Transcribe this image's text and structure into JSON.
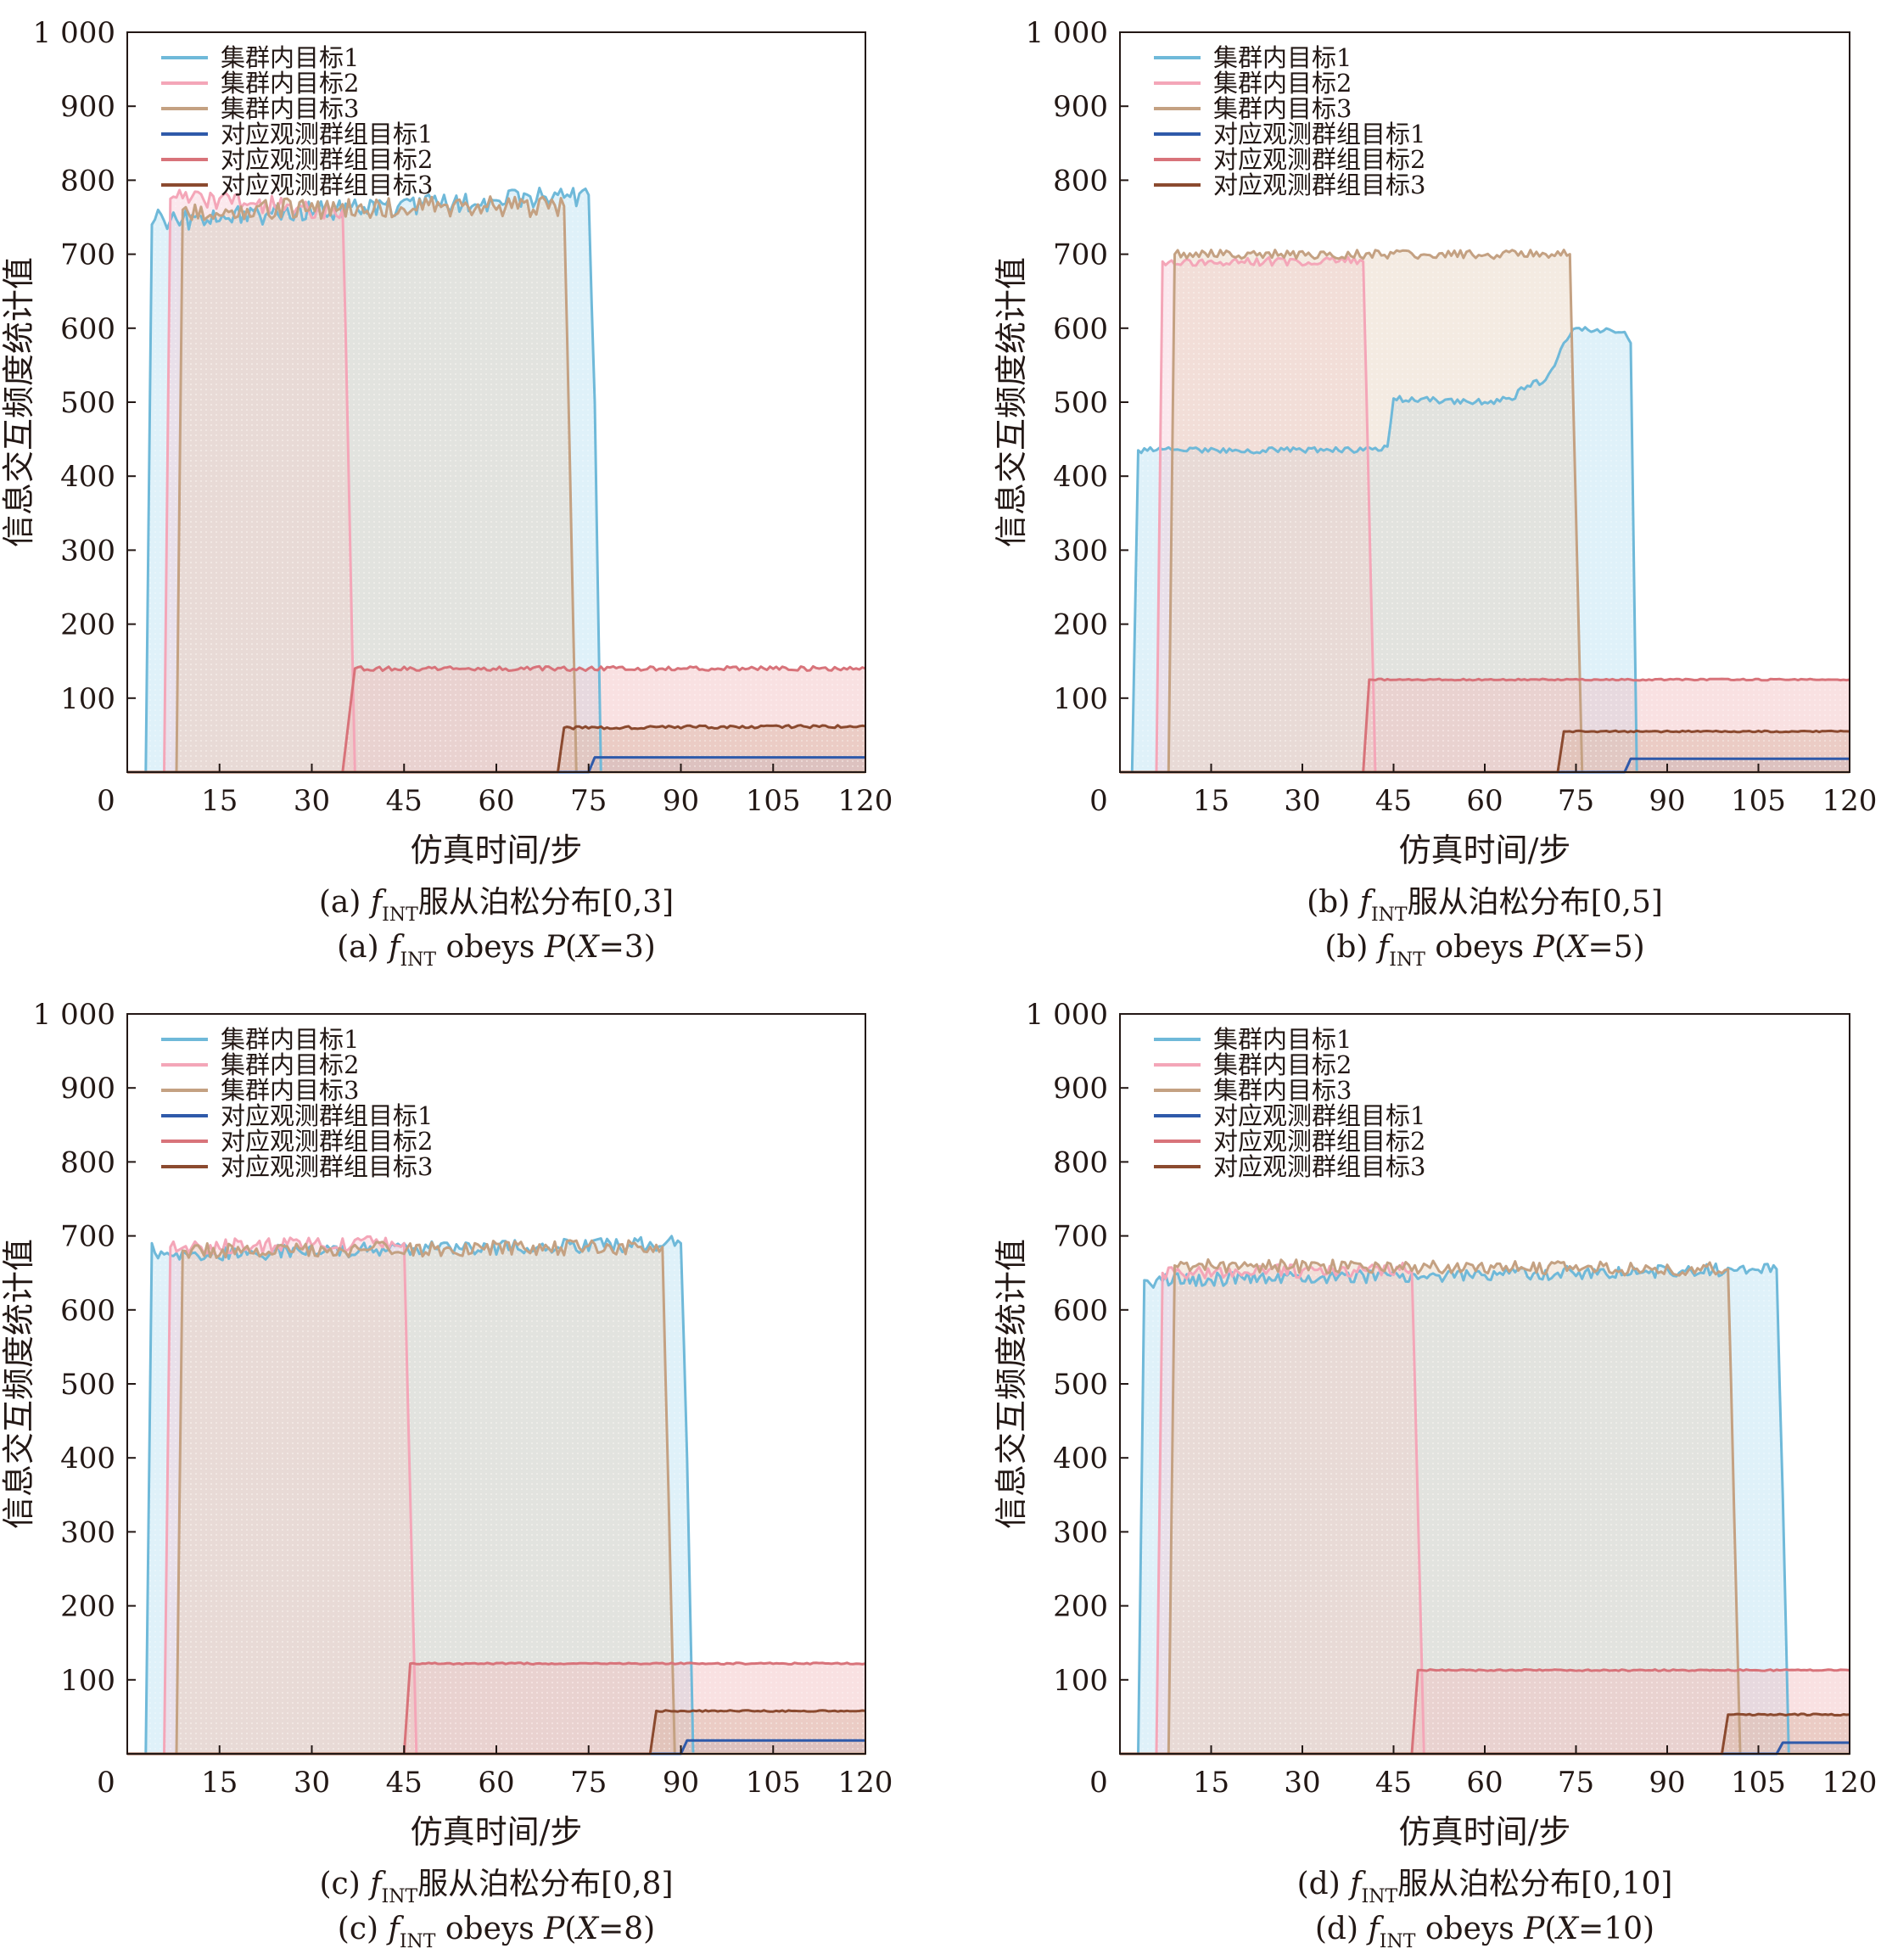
{
  "figure": {
    "panels": [
      {
        "caption_cn": [
          "(a) ",
          "f",
          "INT",
          "服从泊松分布[0,3]"
        ],
        "caption_en": [
          "(a) ",
          "f",
          "INT",
          " obeys ",
          "P",
          "(",
          "X",
          "=3)"
        ]
      },
      {
        "caption_cn": [
          "(b) ",
          "f",
          "INT",
          "服从泊松分布[0,5]"
        ],
        "caption_en": [
          "(b) ",
          "f",
          "INT",
          " obeys ",
          "P",
          "(",
          "X",
          "=5)"
        ]
      },
      {
        "caption_cn": [
          "(c) ",
          "f",
          "INT",
          "服从泊松分布[0,8]"
        ],
        "caption_en": [
          "(c) ",
          "f",
          "INT",
          " obeys ",
          "P",
          "(",
          "X",
          "=8)"
        ]
      },
      {
        "caption_cn": [
          "(d) ",
          "f",
          "INT",
          "服从泊松分布[0,10]"
        ],
        "caption_en": [
          "(d) ",
          "f",
          "INT",
          " obeys ",
          "P",
          "(",
          "X",
          "=10)"
        ]
      }
    ]
  },
  "chart_data": [
    {
      "type": "area",
      "xlabel": "仿真时间/步",
      "ylabel": "信息交互频度统计值",
      "xlim": [
        0,
        120
      ],
      "ylim": [
        0,
        1000
      ],
      "xticks": [
        0,
        15,
        30,
        45,
        60,
        75,
        90,
        105,
        120
      ],
      "yticks": [
        100,
        200,
        300,
        400,
        500,
        600,
        700,
        800,
        900,
        1000
      ],
      "ytick_labels": [
        "100",
        "200",
        "300",
        "400",
        "500",
        "600",
        "700",
        "800",
        "900",
        "1 000"
      ],
      "legend": "top-left",
      "series": [
        {
          "name": "集群内目标1",
          "color": "#6fb9d9",
          "fill": "#b9e0f1",
          "x": [
            0,
            3,
            4,
            5,
            6,
            75,
            76,
            77,
            120
          ],
          "values": [
            0,
            0,
            740,
            760,
            745,
            780,
            500,
            0,
            0
          ],
          "noise": 14
        },
        {
          "name": "集群内目标2",
          "color": "#f4a6b8",
          "fill": "#f6cdd6",
          "x": [
            0,
            6,
            7,
            35,
            36,
            37,
            120
          ],
          "values": [
            0,
            0,
            775,
            760,
            400,
            0,
            0
          ],
          "noise": 14
        },
        {
          "name": "集群内目标3",
          "color": "#c4a182",
          "fill": "#e6d2bf",
          "x": [
            0,
            8,
            9,
            71,
            72,
            73,
            120
          ],
          "values": [
            0,
            0,
            760,
            765,
            400,
            0,
            0
          ],
          "noise": 14
        },
        {
          "name": "对应观测群组目标1",
          "color": "#2f5aaa",
          "fill": "#9fb4dc",
          "x": [
            0,
            75,
            76,
            120
          ],
          "values": [
            0,
            0,
            20,
            20
          ],
          "noise": 0
        },
        {
          "name": "对应观测群组目标2",
          "color": "#d8737a",
          "fill": "#f2bcbf",
          "x": [
            0,
            35,
            37,
            120
          ],
          "values": [
            0,
            0,
            140,
            140
          ],
          "noise": 3
        },
        {
          "name": "对应观测群组目标3",
          "color": "#8b4a2f",
          "fill": "#d9b3a2",
          "x": [
            0,
            70,
            71,
            120
          ],
          "values": [
            0,
            0,
            60,
            62
          ],
          "noise": 2
        }
      ]
    },
    {
      "type": "area",
      "xlabel": "仿真时间/步",
      "ylabel": "信息交互频度统计值",
      "xlim": [
        0,
        120
      ],
      "ylim": [
        0,
        1000
      ],
      "xticks": [
        0,
        15,
        30,
        45,
        60,
        75,
        90,
        105,
        120
      ],
      "yticks": [
        100,
        200,
        300,
        400,
        500,
        600,
        700,
        800,
        900,
        1000
      ],
      "ytick_labels": [
        "100",
        "200",
        "300",
        "400",
        "500",
        "600",
        "700",
        "800",
        "900",
        "1 000"
      ],
      "legend": "top-left",
      "series": [
        {
          "name": "集群内目标1",
          "color": "#6fb9d9",
          "fill": "#b9e0f1",
          "x": [
            0,
            2,
            3,
            43,
            44,
            45,
            60,
            65,
            66,
            70,
            72,
            73,
            74,
            75,
            83,
            84,
            85,
            120
          ],
          "values": [
            0,
            0,
            435,
            435,
            440,
            505,
            500,
            505,
            520,
            530,
            560,
            580,
            590,
            600,
            595,
            580,
            0,
            0
          ],
          "noise": 4
        },
        {
          "name": "集群内目标2",
          "color": "#f4a6b8",
          "fill": "#f6cdd6",
          "x": [
            0,
            6,
            7,
            40,
            41,
            42,
            120
          ],
          "values": [
            0,
            0,
            690,
            690,
            350,
            0,
            0
          ],
          "noise": 6
        },
        {
          "name": "集群内目标3",
          "color": "#c4a182",
          "fill": "#e6d2bf",
          "x": [
            0,
            8,
            9,
            74,
            75,
            76,
            120
          ],
          "values": [
            0,
            0,
            700,
            700,
            350,
            0,
            0
          ],
          "noise": 6
        },
        {
          "name": "对应观测群组目标1",
          "color": "#2f5aaa",
          "fill": "#9fb4dc",
          "x": [
            0,
            83,
            84,
            120
          ],
          "values": [
            0,
            0,
            18,
            18
          ],
          "noise": 0
        },
        {
          "name": "对应观测群组目标2",
          "color": "#d8737a",
          "fill": "#f2bcbf",
          "x": [
            0,
            40,
            41,
            120
          ],
          "values": [
            0,
            0,
            125,
            125
          ],
          "noise": 1
        },
        {
          "name": "对应观测群组目标3",
          "color": "#8b4a2f",
          "fill": "#d9b3a2",
          "x": [
            0,
            72,
            73,
            120
          ],
          "values": [
            0,
            0,
            55,
            55
          ],
          "noise": 1
        }
      ]
    },
    {
      "type": "area",
      "xlabel": "仿真时间/步",
      "ylabel": "信息交互频度统计值",
      "xlim": [
        0,
        120
      ],
      "ylim": [
        0,
        1000
      ],
      "xticks": [
        0,
        15,
        30,
        45,
        60,
        75,
        90,
        105,
        120
      ],
      "yticks": [
        100,
        200,
        300,
        400,
        500,
        600,
        700,
        800,
        900,
        1000
      ],
      "ytick_labels": [
        "100",
        "200",
        "300",
        "400",
        "500",
        "600",
        "700",
        "800",
        "900",
        "1 000"
      ],
      "legend": "top-left",
      "series": [
        {
          "name": "集群内目标1",
          "color": "#6fb9d9",
          "fill": "#b9e0f1",
          "x": [
            0,
            3,
            4,
            5,
            6,
            90,
            91,
            92,
            120
          ],
          "values": [
            0,
            0,
            690,
            670,
            675,
            690,
            400,
            0,
            0
          ],
          "noise": 10
        },
        {
          "name": "集群内目标2",
          "color": "#f4a6b8",
          "fill": "#f6cdd6",
          "x": [
            0,
            6,
            7,
            45,
            46,
            47,
            120
          ],
          "values": [
            0,
            0,
            685,
            690,
            350,
            0,
            0
          ],
          "noise": 10
        },
        {
          "name": "集群内目标3",
          "color": "#c4a182",
          "fill": "#e6d2bf",
          "x": [
            0,
            8,
            9,
            87,
            88,
            89,
            120
          ],
          "values": [
            0,
            0,
            680,
            685,
            350,
            0,
            0
          ],
          "noise": 10
        },
        {
          "name": "对应观测群组目标1",
          "color": "#2f5aaa",
          "fill": "#9fb4dc",
          "x": [
            0,
            90,
            91,
            120
          ],
          "values": [
            0,
            0,
            18,
            18
          ],
          "noise": 0
        },
        {
          "name": "对应观测群组目标2",
          "color": "#d8737a",
          "fill": "#f2bcbf",
          "x": [
            0,
            45,
            46,
            120
          ],
          "values": [
            0,
            0,
            122,
            122
          ],
          "noise": 1
        },
        {
          "name": "对应观测群组目标3",
          "color": "#8b4a2f",
          "fill": "#d9b3a2",
          "x": [
            0,
            85,
            86,
            120
          ],
          "values": [
            0,
            0,
            58,
            58
          ],
          "noise": 1
        }
      ]
    },
    {
      "type": "area",
      "xlabel": "仿真时间/步",
      "ylabel": "信息交互频度统计值",
      "xlim": [
        0,
        120
      ],
      "ylim": [
        0,
        1000
      ],
      "xticks": [
        0,
        15,
        30,
        45,
        60,
        75,
        90,
        105,
        120
      ],
      "yticks": [
        100,
        200,
        300,
        400,
        500,
        600,
        700,
        800,
        900,
        1000
      ],
      "ytick_labels": [
        "100",
        "200",
        "300",
        "400",
        "500",
        "600",
        "700",
        "800",
        "900",
        "1 000"
      ],
      "legend": "top-left",
      "series": [
        {
          "name": "集群内目标1",
          "color": "#6fb9d9",
          "fill": "#b9e0f1",
          "x": [
            0,
            3,
            4,
            5,
            6,
            108,
            109,
            110,
            120
          ],
          "values": [
            0,
            0,
            640,
            635,
            640,
            655,
            350,
            0,
            0
          ],
          "noise": 9
        },
        {
          "name": "集群内目标2",
          "color": "#f4a6b8",
          "fill": "#f6cdd6",
          "x": [
            0,
            6,
            7,
            48,
            49,
            50,
            120
          ],
          "values": [
            0,
            0,
            650,
            655,
            330,
            0,
            0
          ],
          "noise": 9
        },
        {
          "name": "集群内目标3",
          "color": "#c4a182",
          "fill": "#e6d2bf",
          "x": [
            0,
            8,
            9,
            100,
            101,
            102,
            120
          ],
          "values": [
            0,
            0,
            660,
            655,
            330,
            0,
            0
          ],
          "noise": 9
        },
        {
          "name": "对应观测群组目标1",
          "color": "#2f5aaa",
          "fill": "#9fb4dc",
          "x": [
            0,
            108,
            109,
            120
          ],
          "values": [
            0,
            0,
            15,
            15
          ],
          "noise": 0
        },
        {
          "name": "对应观测群组目标2",
          "color": "#d8737a",
          "fill": "#f2bcbf",
          "x": [
            0,
            48,
            49,
            120
          ],
          "values": [
            0,
            0,
            113,
            113
          ],
          "noise": 1
        },
        {
          "name": "对应观测群组目标3",
          "color": "#8b4a2f",
          "fill": "#d9b3a2",
          "x": [
            0,
            99,
            100,
            120
          ],
          "values": [
            0,
            0,
            53,
            53
          ],
          "noise": 1
        }
      ]
    }
  ]
}
